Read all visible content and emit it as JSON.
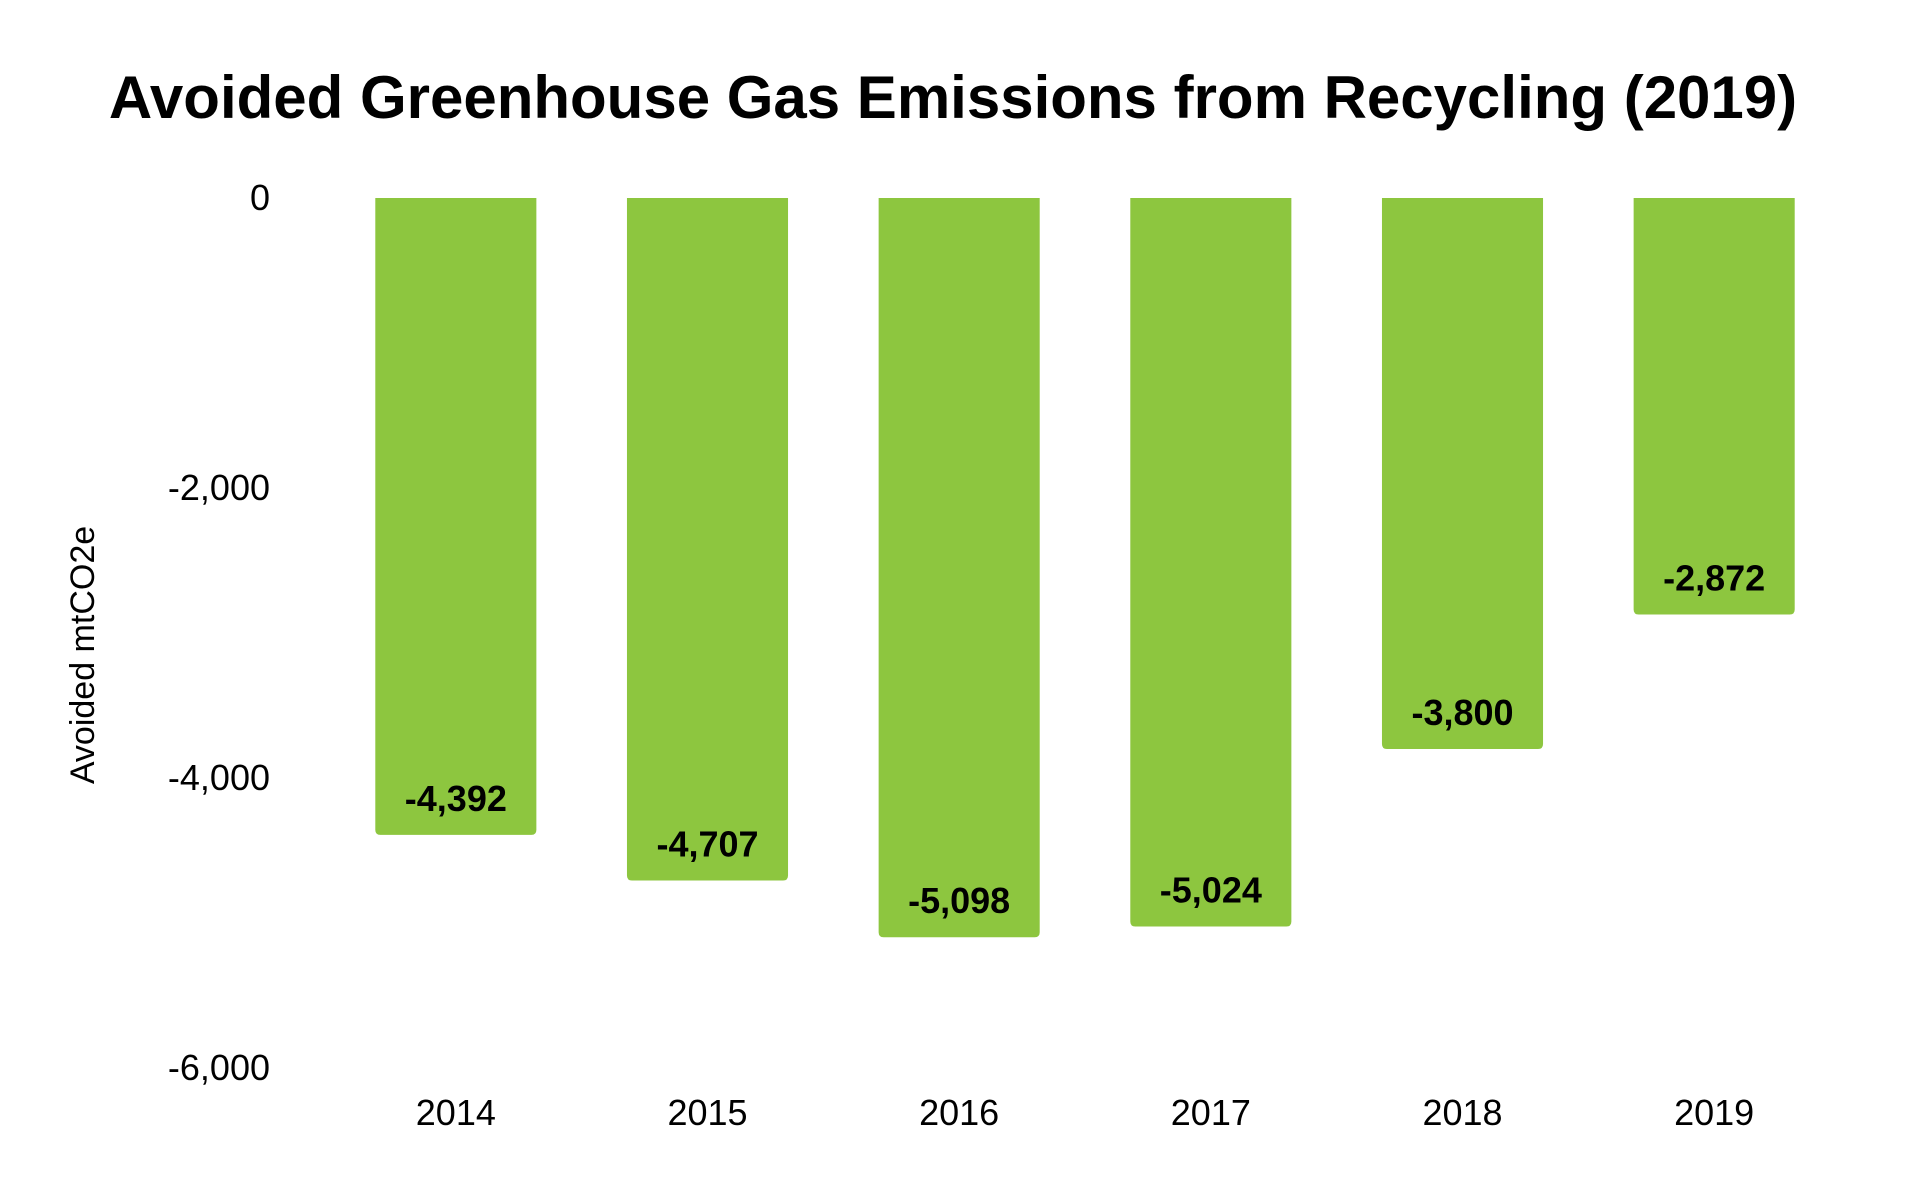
{
  "chart_data": {
    "type": "bar",
    "title": "Avoided Greenhouse Gas Emissions from Recycling (2019)",
    "xlabel": "",
    "ylabel": "Avoided mtCO2e",
    "categories": [
      "2014",
      "2015",
      "2016",
      "2017",
      "2018",
      "2019"
    ],
    "values": [
      -4392,
      -4707,
      -5098,
      -5024,
      -3800,
      -2872
    ],
    "data_labels": [
      "-4,392",
      "-4,707",
      "-5,098",
      "-5,024",
      "-3,800",
      "-2,872"
    ],
    "ylim": [
      -6000,
      0
    ],
    "y_ticks": [
      0,
      -2000,
      -4000,
      -6000
    ],
    "y_tick_labels": [
      "0",
      "-2,000",
      "-4,000",
      "-6,000"
    ],
    "grid": false,
    "legend": "none",
    "bar_color": "#8dc63f"
  }
}
